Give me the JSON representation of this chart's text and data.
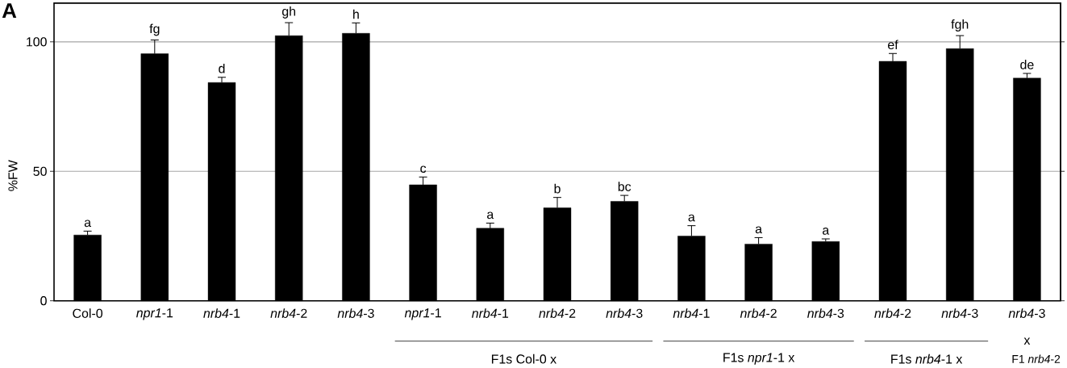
{
  "chart_data": {
    "type": "bar",
    "title": "A",
    "ylabel": "%FW",
    "categories": [
      "Col-0",
      "*npr1*-1",
      "*nrb4*-1",
      "*nrb4*-2",
      "*nrb4*-3",
      "*npr1*-1",
      "*nrb4*-1",
      "*nrb4*-2",
      "*nrb4*-3",
      "*nrb4*-1",
      "*nrb4*-2",
      "*nrb4*-3",
      "*nrb4*-2",
      "*nrb4*-3",
      "*nrb4*-3"
    ],
    "values": [
      25.4,
      95.4,
      84.3,
      102.4,
      103.3,
      44.8,
      28.0,
      35.9,
      38.4,
      25.0,
      21.9,
      22.9,
      92.5,
      97.4,
      86.0
    ],
    "errors": [
      1.5,
      5.3,
      2,
      5,
      4,
      3,
      2,
      4,
      2.3,
      4,
      2.5,
      1,
      3,
      5,
      1.8
    ],
    "value_labels": [
      "a",
      "fg",
      "d",
      "gh",
      "h",
      "c",
      "a",
      "b",
      "bc",
      "a",
      "a",
      "a",
      "ef",
      "fgh",
      "de"
    ],
    "color": "#000000",
    "ylim": [
      0,
      115
    ],
    "yticks": [
      0,
      50,
      100
    ],
    "grid": "y",
    "annotations": [
      "F1s Col-0 x",
      "F1s *npr1*-1 x",
      "F1s *nrb4*-1 x",
      "x",
      "F1 *nrb4*-2"
    ]
  }
}
